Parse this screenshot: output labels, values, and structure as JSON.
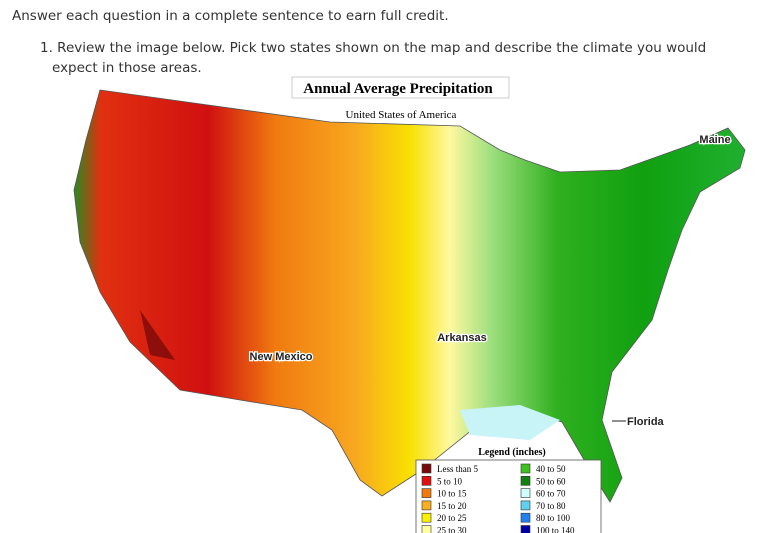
{
  "instruction": "Answer each question in a complete sentence to earn full credit.",
  "question": "1. Review the image below. Pick two states shown on the map and describe the climate you would expect in those areas.",
  "map": {
    "title": "Annual Average Precipitation",
    "subtitle": "United States of America",
    "labels": [
      "Maine",
      "Arkansas",
      "New Mexico",
      "Florida"
    ],
    "legend": {
      "title": "Legend (inches)",
      "items": [
        {
          "label": "Less than 5",
          "color": "#7a0a0a"
        },
        {
          "label": "5 to 10",
          "color": "#e01010"
        },
        {
          "label": "10 to 15",
          "color": "#f07a10"
        },
        {
          "label": "15 to 20",
          "color": "#f8b020"
        },
        {
          "label": "20 to 25",
          "color": "#f8f000"
        },
        {
          "label": "25 to 30",
          "color": "#ffffa0"
        },
        {
          "label": "40 to 50",
          "color": "#40c020"
        },
        {
          "label": "50 to 60",
          "color": "#108010"
        },
        {
          "label": "60 to 70",
          "color": "#d0ffff"
        },
        {
          "label": "70 to 80",
          "color": "#60d0f0"
        },
        {
          "label": "80 to 100",
          "color": "#2080f0"
        },
        {
          "label": "100 to 140",
          "color": "#0000a0"
        }
      ]
    }
  }
}
